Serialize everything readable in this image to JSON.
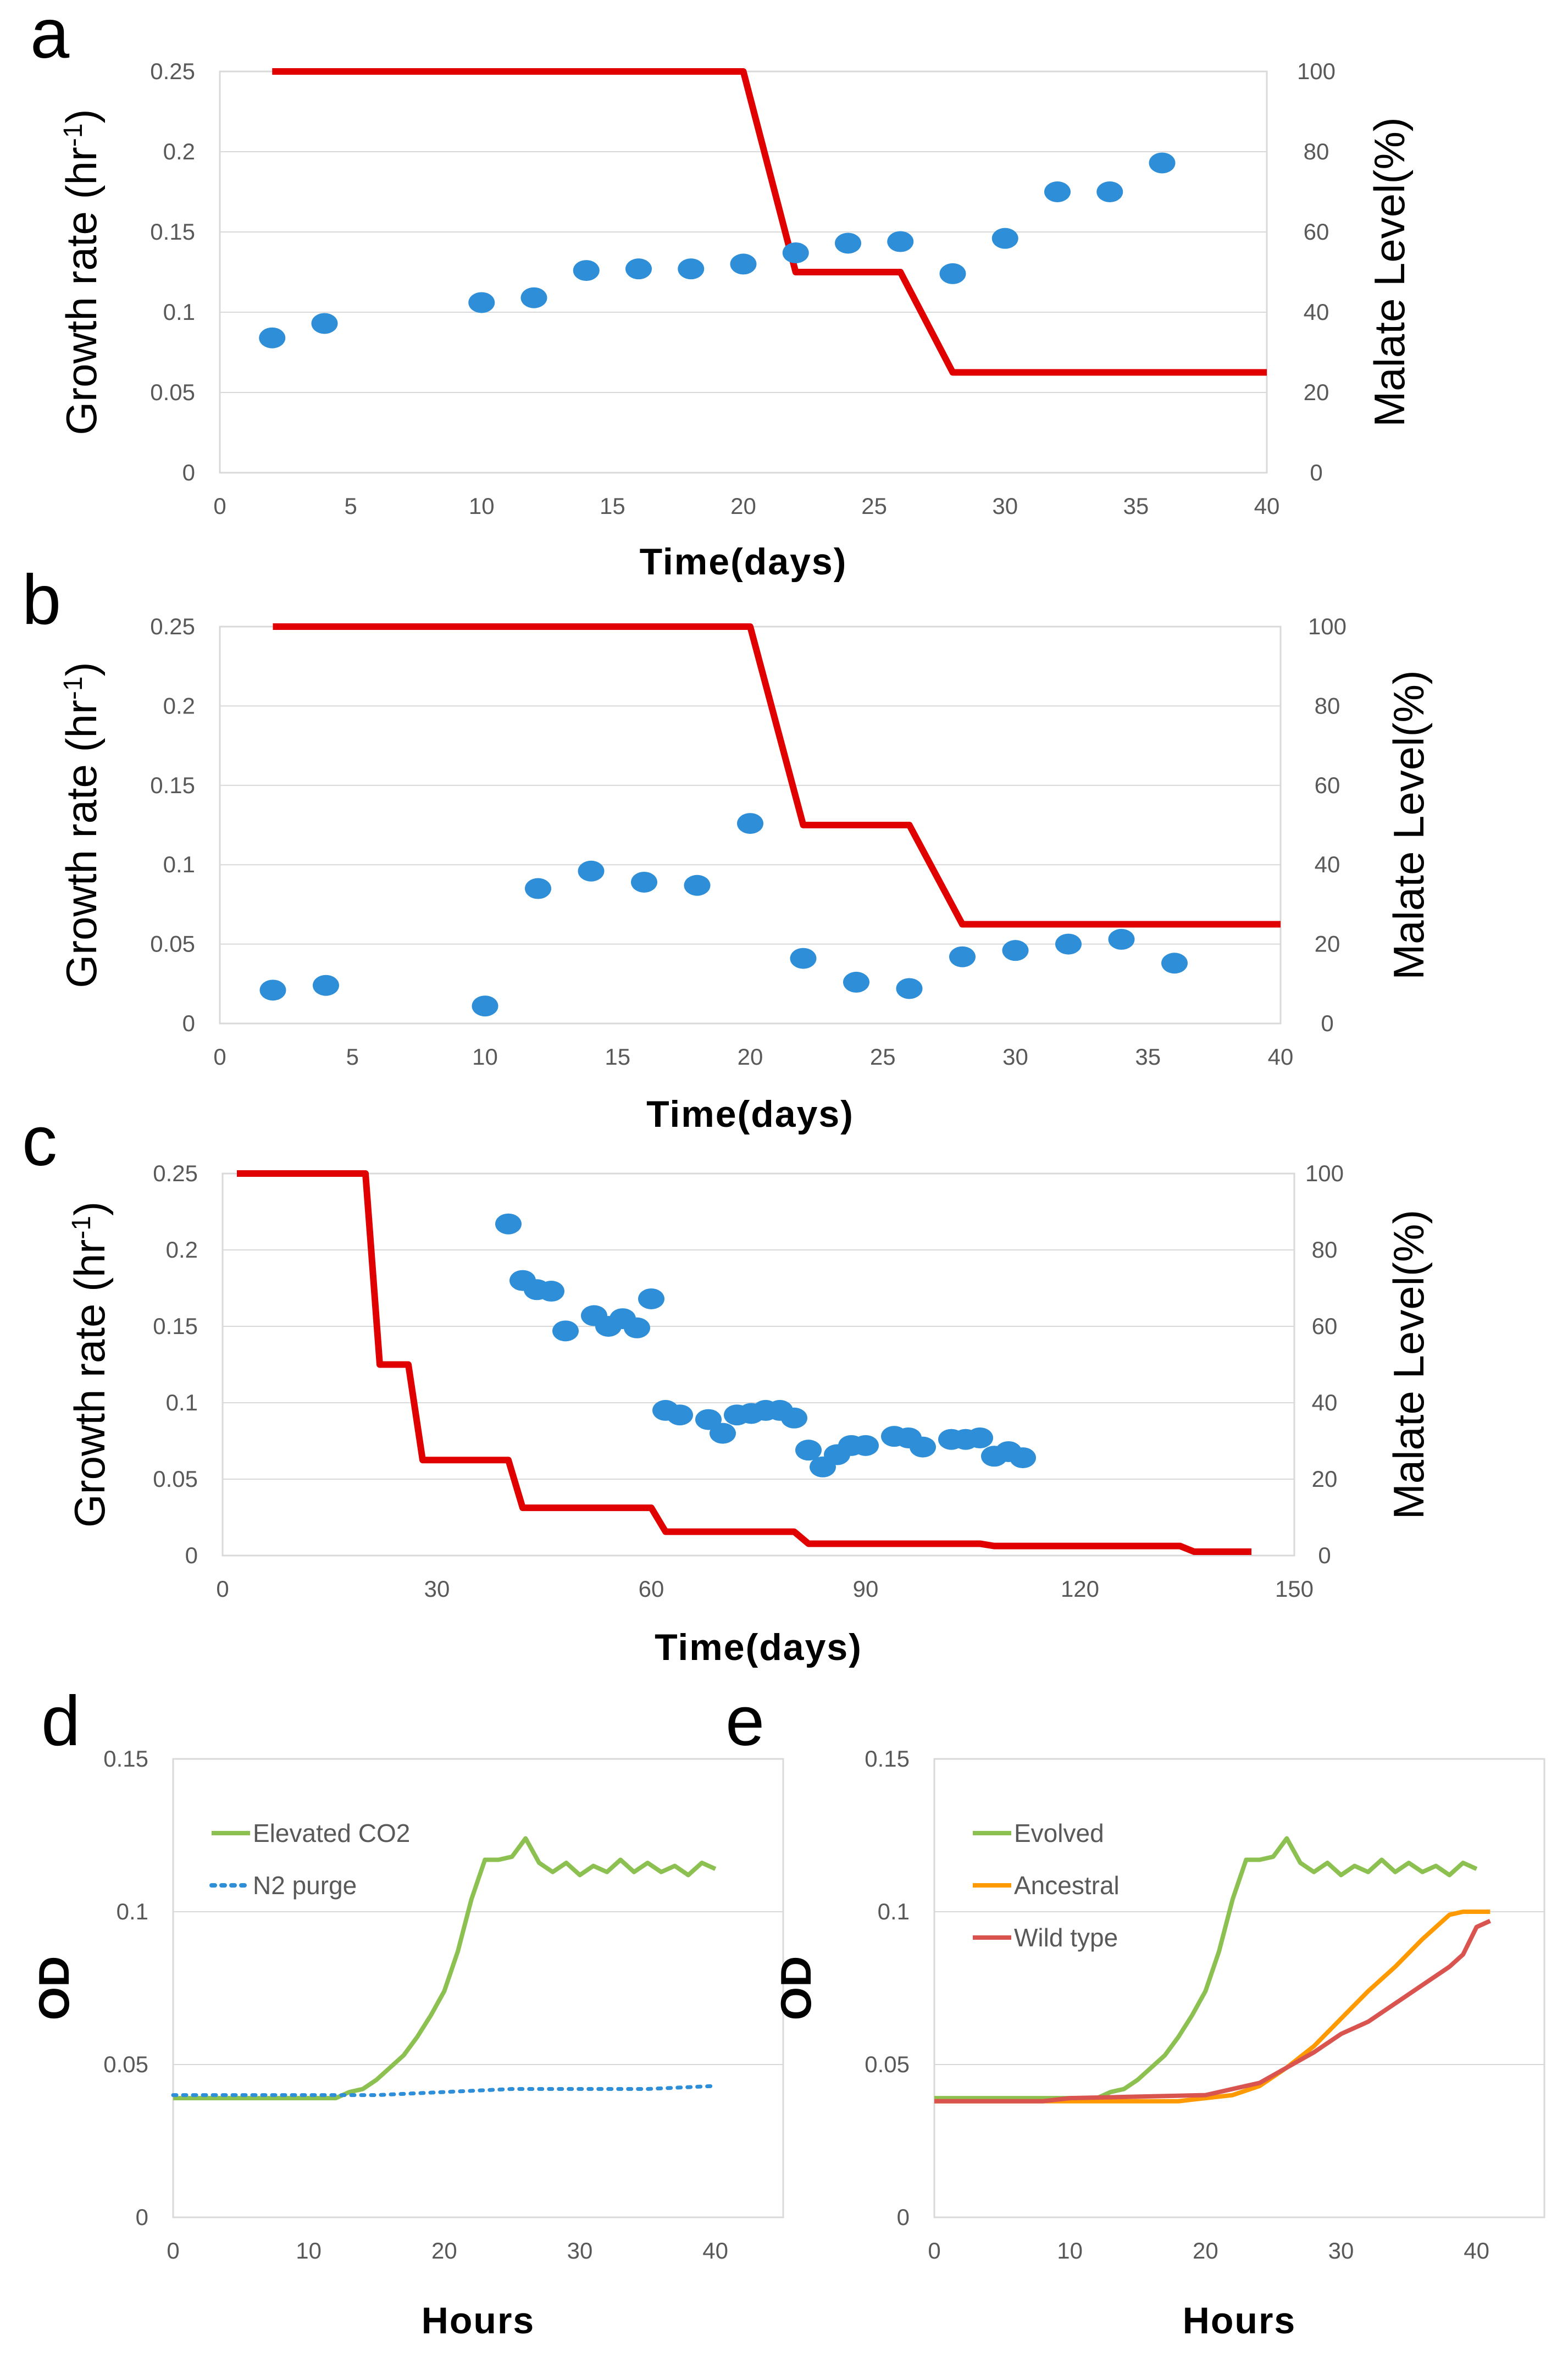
{
  "colors": {
    "malate_line": "#e00000",
    "growth_points": "#2e8fd8",
    "evolved": "#8cc152",
    "n2_purge": "#2e8fd8",
    "ancestral": "#ff9900",
    "wild_type": "#d9534f"
  },
  "chart_data": [
    {
      "panel": "a",
      "type": "scatter+line",
      "xlabel": "Time(days)",
      "ylabel": "Growth rate (hr",
      "ylabel_sup": "-1",
      "ylabel_close": ")",
      "y2label": "Malate Level(%)",
      "xlim": [
        0,
        40
      ],
      "ylim": [
        0,
        0.25
      ],
      "y2lim": [
        0,
        100
      ],
      "xticks": [
        0,
        5,
        10,
        15,
        20,
        25,
        30,
        35,
        40
      ],
      "yticks": [
        0,
        0.05,
        0.1,
        0.15,
        0.2,
        0.25
      ],
      "ytick_labels": [
        "0",
        "0.05",
        "0.1",
        "0.15",
        "0.2",
        "0.25"
      ],
      "y2ticks": [
        0,
        20,
        40,
        60,
        80,
        100
      ],
      "growth_rate": {
        "x": [
          2,
          4,
          10,
          12,
          14,
          16,
          18,
          20,
          22,
          24,
          26,
          28,
          30,
          32,
          34,
          36
        ],
        "y": [
          0.084,
          0.093,
          0.106,
          0.109,
          0.126,
          0.127,
          0.127,
          0.13,
          0.137,
          0.143,
          0.144,
          0.124,
          0.146,
          0.175,
          0.175,
          0.193
        ]
      },
      "malate_level": {
        "x": [
          2,
          20,
          22,
          26,
          28,
          40
        ],
        "y": [
          100,
          100,
          50,
          50,
          25,
          25
        ]
      }
    },
    {
      "panel": "b",
      "type": "scatter+line",
      "xlabel": "Time(days)",
      "ylabel": "Growth rate (hr",
      "ylabel_sup": "-1",
      "ylabel_close": ")",
      "y2label": "Malate Level(%)",
      "xlim": [
        0,
        40
      ],
      "ylim": [
        0,
        0.25
      ],
      "y2lim": [
        0,
        100
      ],
      "xticks": [
        0,
        5,
        10,
        15,
        20,
        25,
        30,
        35,
        40
      ],
      "yticks": [
        0,
        0.05,
        0.1,
        0.15,
        0.2,
        0.25
      ],
      "ytick_labels": [
        "0",
        "0.05",
        "0.1",
        "0.15",
        "0.2",
        "0.25"
      ],
      "y2ticks": [
        0,
        20,
        40,
        60,
        80,
        100
      ],
      "growth_rate": {
        "x": [
          2,
          4,
          10,
          12,
          14,
          16,
          18,
          20,
          22,
          24,
          26,
          28,
          30,
          32,
          34,
          36
        ],
        "y": [
          0.021,
          0.024,
          0.011,
          0.085,
          0.096,
          0.089,
          0.087,
          0.126,
          0.041,
          0.026,
          0.022,
          0.042,
          0.046,
          0.05,
          0.053,
          0.038
        ]
      },
      "malate_level": {
        "x": [
          2,
          20,
          22,
          26,
          28,
          40
        ],
        "y": [
          100,
          100,
          50,
          50,
          25,
          25
        ]
      }
    },
    {
      "panel": "c",
      "type": "scatter+line",
      "xlabel": "Time(days)",
      "ylabel": "Growth rate (hr",
      "ylabel_sup": "-1",
      "ylabel_close": ")",
      "y2label": "Malate Level(%)",
      "xlim": [
        0,
        150
      ],
      "ylim": [
        0,
        0.25
      ],
      "y2lim": [
        0,
        100
      ],
      "xticks": [
        0,
        30,
        60,
        90,
        120,
        150
      ],
      "yticks": [
        0,
        0.05,
        0.1,
        0.15,
        0.2,
        0.25
      ],
      "ytick_labels": [
        "0",
        "0.05",
        "0.1",
        "0.15",
        "0.2",
        "0.25"
      ],
      "y2ticks": [
        0,
        20,
        40,
        60,
        80,
        100
      ],
      "growth_rate": {
        "x": [
          40,
          42,
          44,
          46,
          48,
          52,
          54,
          56,
          58,
          60,
          62,
          64,
          68,
          70,
          72,
          74,
          76,
          78,
          80,
          82,
          84,
          86,
          88,
          90,
          94,
          96,
          98,
          102,
          104,
          106,
          108,
          110,
          112
        ],
        "y": [
          0.217,
          0.18,
          0.174,
          0.173,
          0.147,
          0.157,
          0.15,
          0.155,
          0.149,
          0.168,
          0.095,
          0.092,
          0.089,
          0.08,
          0.092,
          0.093,
          0.095,
          0.095,
          0.09,
          0.069,
          0.058,
          0.066,
          0.072,
          0.072,
          0.078,
          0.077,
          0.071,
          0.076,
          0.076,
          0.077,
          0.065,
          0.068,
          0.064
        ]
      },
      "malate_level": {
        "x": [
          2,
          20,
          22,
          26,
          28,
          40,
          42,
          60,
          62,
          80,
          82,
          106,
          108,
          134,
          136,
          144
        ],
        "y": [
          100,
          100,
          50,
          50,
          25,
          25,
          12.5,
          12.5,
          6.25,
          6.25,
          3.1,
          3.1,
          2.5,
          2.5,
          1.0,
          1.0
        ]
      }
    },
    {
      "panel": "d",
      "type": "line",
      "xlabel": "Hours",
      "ylabel": "OD",
      "xlim": [
        0,
        45
      ],
      "ylim": [
        0,
        0.15
      ],
      "xticks": [
        0,
        10,
        20,
        30,
        40
      ],
      "yticks": [
        0,
        0.05,
        0.1,
        0.15
      ],
      "ytick_labels": [
        "0",
        "0.05",
        "0.1",
        "0.15"
      ],
      "series": [
        {
          "name": "Elevated CO2",
          "style": "solid",
          "x": [
            0,
            12,
            13,
            14,
            15,
            16,
            17,
            18,
            19,
            20,
            21,
            22,
            23,
            24,
            25,
            26,
            27,
            28,
            29,
            30,
            31,
            32,
            33,
            34,
            35,
            36,
            37,
            38,
            39,
            40
          ],
          "y": [
            0.039,
            0.039,
            0.041,
            0.042,
            0.045,
            0.049,
            0.053,
            0.059,
            0.066,
            0.074,
            0.087,
            0.104,
            0.117,
            0.117,
            0.118,
            0.124,
            0.116,
            0.113,
            0.116,
            0.112,
            0.115,
            0.113,
            0.117,
            0.113,
            0.116,
            0.113,
            0.115,
            0.112,
            0.116,
            0.114
          ]
        },
        {
          "name": "N2 purge",
          "style": "dotted",
          "x": [
            0,
            5,
            10,
            15,
            20,
            25,
            30,
            35,
            40
          ],
          "y": [
            0.04,
            0.04,
            0.04,
            0.04,
            0.041,
            0.042,
            0.042,
            0.042,
            0.043
          ]
        }
      ]
    },
    {
      "panel": "e",
      "type": "line",
      "xlabel": "Hours",
      "ylabel": "OD",
      "xlim": [
        0,
        45
      ],
      "ylim": [
        0,
        0.15
      ],
      "xticks": [
        0,
        10,
        20,
        30,
        40
      ],
      "yticks": [
        0,
        0.05,
        0.1,
        0.15
      ],
      "ytick_labels": [
        "0",
        "0.05",
        "0.1",
        "0.15"
      ],
      "series": [
        {
          "name": "Evolved",
          "style": "solid",
          "x": [
            0,
            12,
            13,
            14,
            15,
            16,
            17,
            18,
            19,
            20,
            21,
            22,
            23,
            24,
            25,
            26,
            27,
            28,
            29,
            30,
            31,
            32,
            33,
            34,
            35,
            36,
            37,
            38,
            39,
            40
          ],
          "y": [
            0.039,
            0.039,
            0.041,
            0.042,
            0.045,
            0.049,
            0.053,
            0.059,
            0.066,
            0.074,
            0.087,
            0.104,
            0.117,
            0.117,
            0.118,
            0.124,
            0.116,
            0.113,
            0.116,
            0.112,
            0.115,
            0.113,
            0.117,
            0.113,
            0.116,
            0.113,
            0.115,
            0.112,
            0.116,
            0.114
          ]
        },
        {
          "name": "Ancestral",
          "style": "solid",
          "x": [
            0,
            18,
            20,
            22,
            24,
            26,
            28,
            30,
            32,
            34,
            36,
            37,
            38,
            39,
            40,
            41
          ],
          "y": [
            0.038,
            0.038,
            0.039,
            0.04,
            0.043,
            0.049,
            0.056,
            0.065,
            0.074,
            0.082,
            0.091,
            0.095,
            0.099,
            0.1,
            0.1,
            0.1
          ]
        },
        {
          "name": "Wild type",
          "style": "solid",
          "x": [
            0,
            8,
            10,
            20,
            24,
            26,
            28,
            30,
            32,
            34,
            36,
            38,
            39,
            40,
            41
          ],
          "y": [
            0.038,
            0.038,
            0.039,
            0.04,
            0.044,
            0.049,
            0.054,
            0.06,
            0.064,
            0.07,
            0.076,
            0.082,
            0.086,
            0.095,
            0.097
          ]
        }
      ]
    }
  ]
}
